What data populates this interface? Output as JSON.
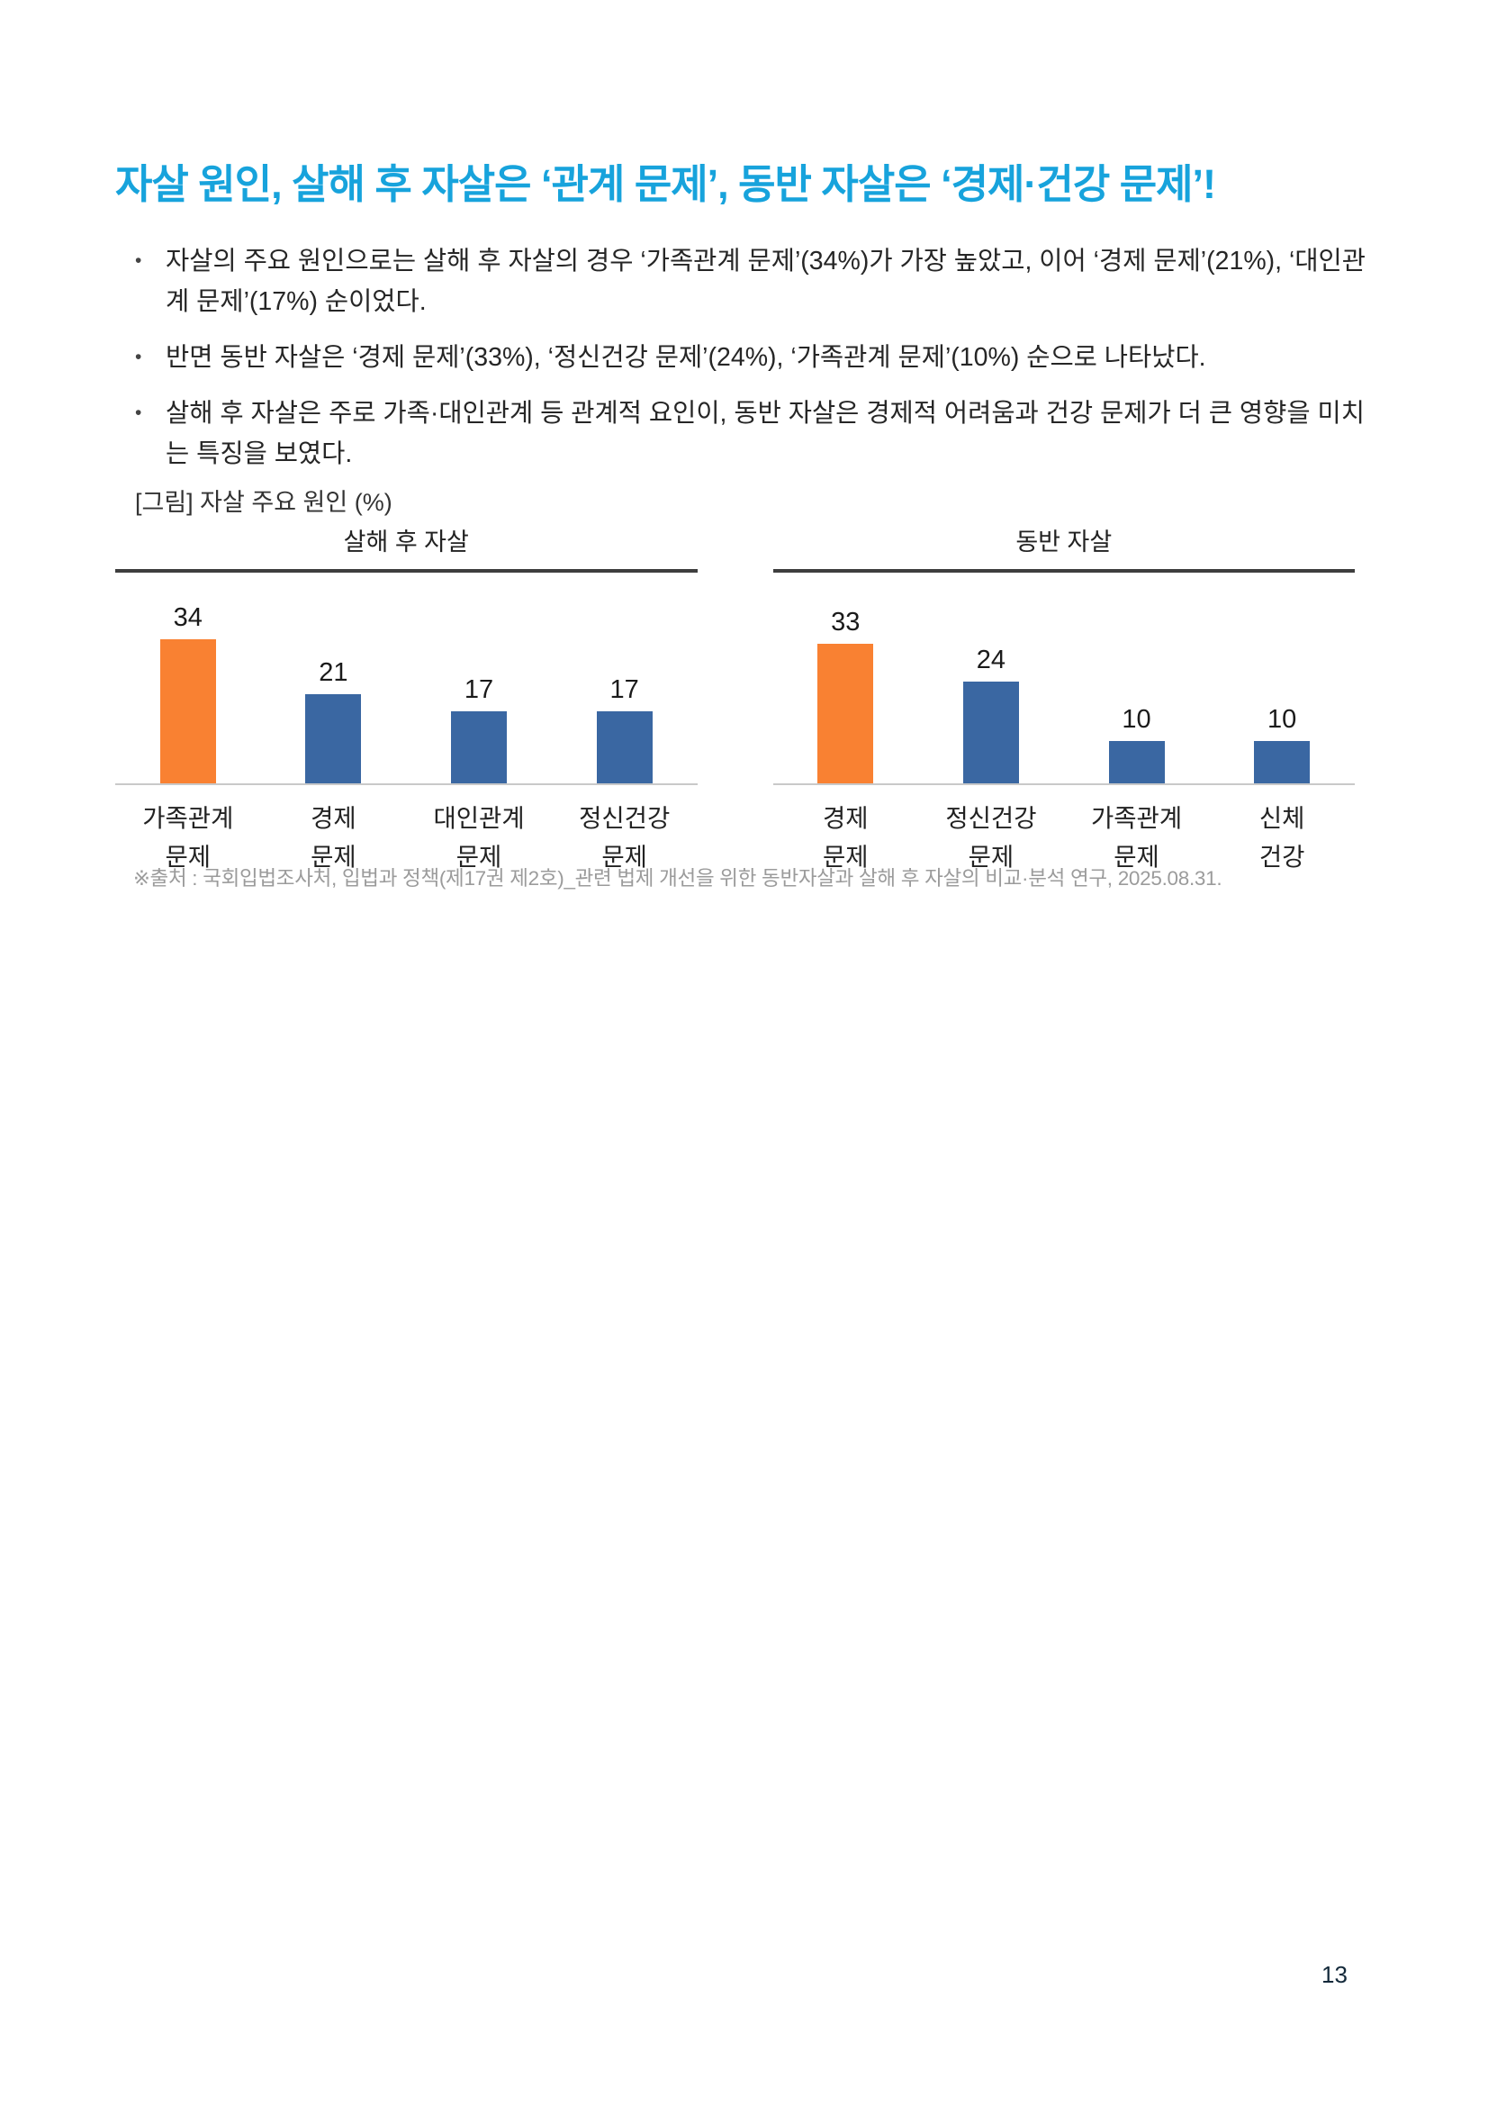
{
  "page": {
    "number": "13"
  },
  "title": {
    "text": "자살 원인, 살해 후 자살은 ‘관계 문제’, 동반 자살은 ‘경제·건강 문제’!",
    "color": "#17a3dc"
  },
  "bullets": [
    {
      "marker": "•",
      "text": "자살의 주요 원인으로는 살해 후 자살의 경우 ‘가족관계 문제’(34%)가 가장 높았고, 이어 ‘경제 문제’(21%), ‘대인관계 문제’(17%) 순이었다."
    },
    {
      "marker": "•",
      "text": "반면 동반 자살은 ‘경제 문제’(33%), ‘정신건강 문제’(24%), ‘가족관계 문제’(10%) 순으로 나타났다."
    },
    {
      "marker": "•",
      "text": "살해 후 자살은 주로 가족·대인관계 등 관계적 요인이, 동반 자살은 경제적 어려움과 건강 문제가 더 큰 영향을 미치는 특징을 보였다."
    }
  ],
  "figure": {
    "caption": "[그림] 자살 주요 원인 (%)",
    "source": "※출처 : 국회입법조사처, 입법과 정책(제17권 제2호)_관련 법제 개선을 위한 동반자살과 살해 후 자살의 비교·분석 연구, 2025.08.31."
  },
  "colors": {
    "title_accent": "#17a3dc",
    "bar_highlight_orange": "#f98132",
    "bar_blue": "#3a67a2",
    "header_underline": "#3e3e3e",
    "axis_line": "#c9c9c9",
    "source_gray": "#9b9b9b"
  },
  "chart_data": [
    {
      "type": "bar",
      "title": "살해 후 자살",
      "categories": [
        "가족관계\n문제",
        "경제\n문제",
        "대인관계\n문제",
        "정신건강\n문제"
      ],
      "values": [
        34,
        21,
        17,
        17
      ],
      "bar_colors": [
        "#f98132",
        "#3a67a2",
        "#3a67a2",
        "#3a67a2"
      ],
      "unit": "%",
      "ylim": [
        0,
        40
      ],
      "grid": "off",
      "legend": "none",
      "value_labels": "above-bars"
    },
    {
      "type": "bar",
      "title": "동반 자살",
      "categories": [
        "경제\n문제",
        "정신건강\n문제",
        "가족관계\n문제",
        "신체\n건강"
      ],
      "values": [
        33,
        24,
        10,
        10
      ],
      "bar_colors": [
        "#f98132",
        "#3a67a2",
        "#3a67a2",
        "#3a67a2"
      ],
      "unit": "%",
      "ylim": [
        0,
        40
      ],
      "grid": "off",
      "legend": "none",
      "value_labels": "above-bars"
    }
  ]
}
